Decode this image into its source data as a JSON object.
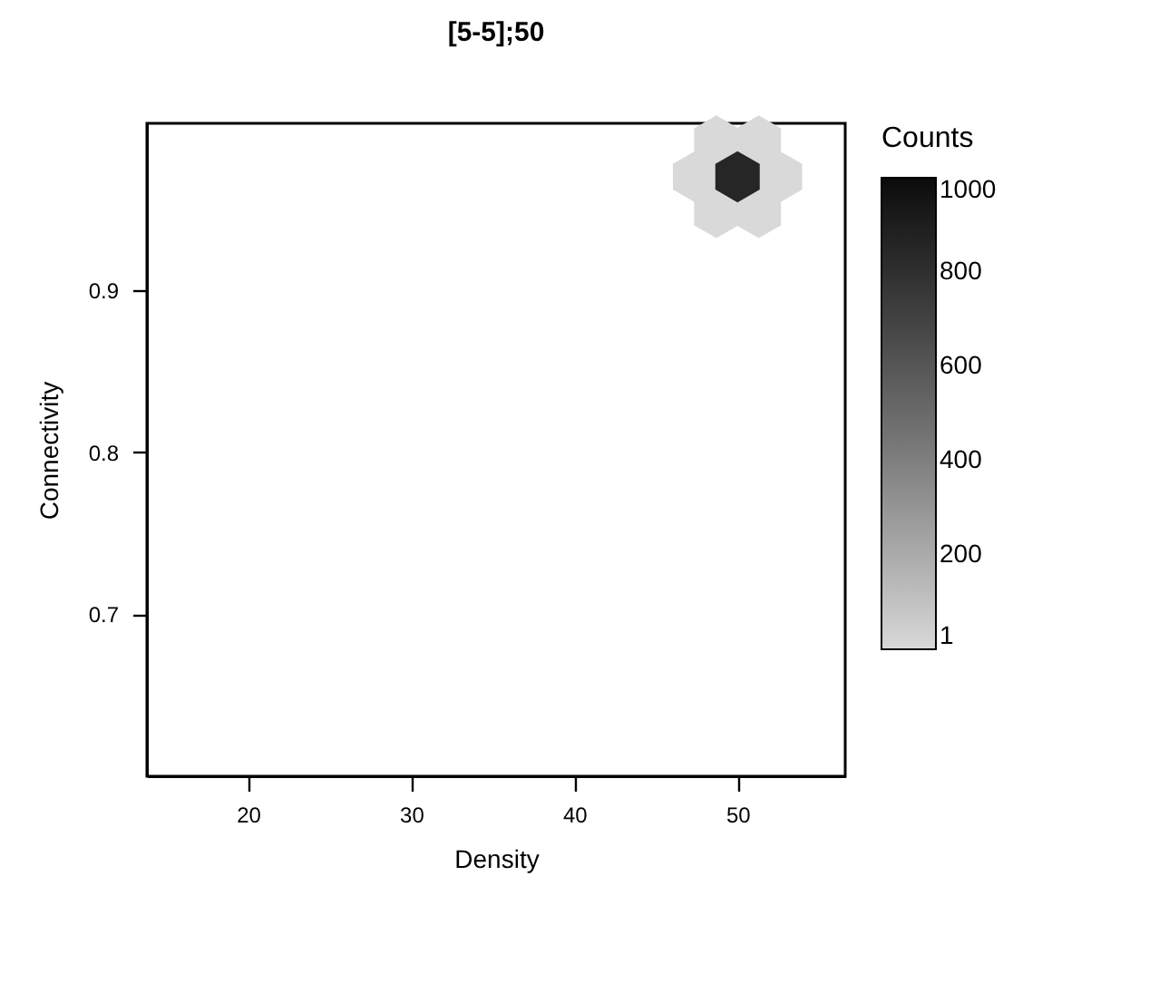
{
  "chart_data": {
    "type": "scatter",
    "title": "[5-5];50",
    "xlabel": "Density",
    "ylabel": "Connectivity",
    "clabel": "Counts",
    "x": [
      47.4,
      52.6,
      48.7,
      51.3,
      48.7,
      51.3,
      50
    ],
    "values": [
      0.97,
      0.97,
      0.992,
      0.992,
      0.948,
      0.948,
      0.97
    ],
    "cvalues": [
      1,
      1,
      1,
      1,
      1,
      1,
      850
    ],
    "clim": [
      1,
      1000
    ],
    "cticks": [
      1,
      200,
      400,
      600,
      800,
      1000
    ],
    "xlim": [
      13.8,
      56.6
    ],
    "xticks": [
      20,
      30,
      40,
      50
    ],
    "ylim": [
      0.6,
      1.003
    ],
    "yticks": [
      0.7,
      0.8,
      0.9
    ],
    "grid": false
  }
}
